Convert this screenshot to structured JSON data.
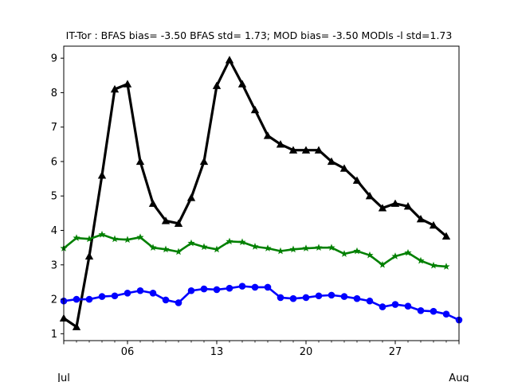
{
  "chart_data": {
    "type": "line",
    "title": "IT-Tor   : BFAS bias= -3.50 BFAS std= 1.73; MOD bias= -3.50 MODls -l std=1.73",
    "xlabel": "",
    "ylabel": "",
    "x_start_day": 1,
    "x_end_day": 32,
    "xlim": [
      1,
      32
    ],
    "ylim": [
      0.8,
      9.35
    ],
    "x_major_ticks": [
      {
        "day": 6,
        "label": "06"
      },
      {
        "day": 13,
        "label": "13"
      },
      {
        "day": 20,
        "label": "20"
      },
      {
        "day": 27,
        "label": "27"
      }
    ],
    "x_month_labels": [
      {
        "day": 1,
        "label": "Jul"
      },
      {
        "day": 32,
        "label": "Aug"
      }
    ],
    "y_ticks": [
      1,
      2,
      3,
      4,
      5,
      6,
      7,
      8,
      9
    ],
    "grid": false,
    "series": [
      {
        "color": "#000000",
        "marker": "triangle",
        "x": [
          1,
          2,
          3,
          4,
          5,
          6,
          7,
          8,
          9,
          10,
          11,
          12,
          13,
          14,
          15,
          16,
          17,
          18,
          19,
          20,
          21,
          22,
          23,
          24,
          25,
          26,
          27,
          28,
          29,
          30,
          31
        ],
        "values": [
          1.45,
          1.2,
          3.25,
          5.6,
          8.1,
          8.25,
          6.0,
          4.78,
          4.28,
          4.2,
          4.95,
          6.0,
          8.2,
          8.95,
          8.25,
          7.5,
          6.75,
          6.5,
          6.33,
          6.33,
          6.33,
          6.0,
          5.8,
          5.45,
          5.0,
          4.65,
          4.78,
          4.7,
          4.33,
          4.15,
          3.83
        ]
      },
      {
        "color": "#008000",
        "marker": "star",
        "x": [
          1,
          2,
          3,
          4,
          5,
          6,
          7,
          8,
          9,
          10,
          11,
          12,
          13,
          14,
          15,
          16,
          17,
          18,
          19,
          20,
          21,
          22,
          23,
          24,
          25,
          26,
          27,
          28,
          29,
          30,
          31
        ],
        "values": [
          3.48,
          3.78,
          3.75,
          3.88,
          3.75,
          3.73,
          3.8,
          3.5,
          3.45,
          3.38,
          3.63,
          3.52,
          3.45,
          3.68,
          3.66,
          3.53,
          3.48,
          3.4,
          3.45,
          3.48,
          3.5,
          3.5,
          3.32,
          3.4,
          3.28,
          3.0,
          3.25,
          3.35,
          3.12,
          2.98,
          2.95
        ]
      },
      {
        "color": "#0000ff",
        "marker": "circle",
        "x": [
          1,
          2,
          3,
          4,
          5,
          6,
          7,
          8,
          9,
          10,
          11,
          12,
          13,
          14,
          15,
          16,
          17,
          18,
          19,
          20,
          21,
          22,
          23,
          24,
          25,
          26,
          27,
          28,
          29,
          30,
          31,
          32
        ],
        "values": [
          1.95,
          2.0,
          2.0,
          2.08,
          2.1,
          2.18,
          2.25,
          2.18,
          1.98,
          1.9,
          2.25,
          2.3,
          2.28,
          2.32,
          2.38,
          2.35,
          2.35,
          2.05,
          2.02,
          2.05,
          2.1,
          2.12,
          2.08,
          2.02,
          1.95,
          1.78,
          1.85,
          1.8,
          1.67,
          1.65,
          1.57,
          1.4
        ]
      }
    ]
  }
}
